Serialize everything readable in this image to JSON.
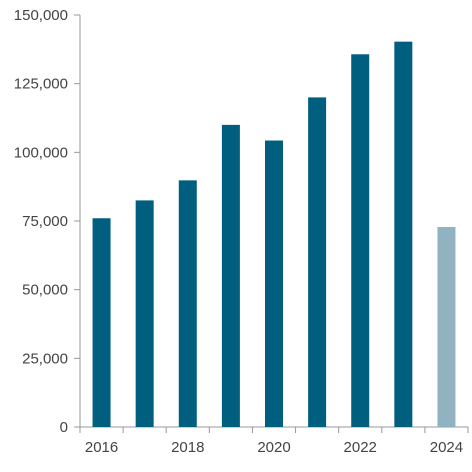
{
  "chart_data": {
    "type": "bar",
    "title": "",
    "xlabel": "",
    "ylabel": "",
    "categories": [
      "2016",
      "2017",
      "2018",
      "2019",
      "2020",
      "2021",
      "2022",
      "2023",
      "2024"
    ],
    "values": [
      76000,
      82500,
      89800,
      110000,
      104300,
      120000,
      135700,
      140300,
      72800
    ],
    "x_tick_labels": [
      "2016",
      "2018",
      "2020",
      "2022",
      "2024"
    ],
    "y_tick_labels": [
      "0",
      "25,000",
      "50,000",
      "75,000",
      "100,000",
      "125,000",
      "150,000"
    ],
    "y_ticks": [
      0,
      25000,
      50000,
      75000,
      100000,
      125000,
      150000
    ],
    "ylim": [
      0,
      150000
    ],
    "grid": false,
    "legend": "none",
    "colors": {
      "bar": "#005f7f",
      "highlight_bar": "#91b2c1",
      "axis": "#999999",
      "text": "#444444"
    },
    "highlight_category": "2024"
  }
}
